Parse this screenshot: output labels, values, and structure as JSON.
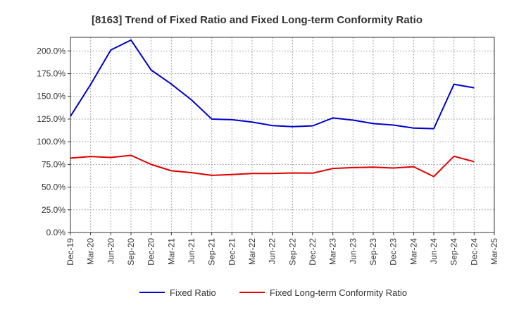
{
  "chart_data": {
    "type": "line",
    "title": "[8163]  Trend of Fixed Ratio and Fixed Long-term Conformity Ratio",
    "xlabel": "",
    "ylabel": "",
    "x": [
      "Dec-19",
      "Mar-20",
      "Jun-20",
      "Sep-20",
      "Dec-20",
      "Mar-21",
      "Jun-21",
      "Sep-21",
      "Dec-21",
      "Mar-22",
      "Jun-22",
      "Sep-22",
      "Dec-22",
      "Mar-23",
      "Jun-23",
      "Sep-23",
      "Dec-23",
      "Mar-24",
      "Jun-24",
      "Sep-24",
      "Dec-24",
      "Mar-25"
    ],
    "y_ticks": [
      "0.0%",
      "25.0%",
      "50.0%",
      "75.0%",
      "100.0%",
      "125.0%",
      "150.0%",
      "175.0%",
      "200.0%"
    ],
    "ylim": [
      0,
      215
    ],
    "grid": true,
    "legend_position": "bottom",
    "series": [
      {
        "name": "Fixed Ratio",
        "color": "#0000cc",
        "values": [
          128.0,
          163.0,
          201.0,
          212.0,
          179.0,
          163.5,
          146.0,
          125.0,
          124.3,
          121.7,
          117.8,
          116.6,
          117.5,
          126.2,
          123.8,
          120.0,
          118.4,
          115.1,
          114.4,
          163.3,
          159.4,
          null
        ]
      },
      {
        "name": "Fixed Long-term Conformity Ratio",
        "color": "#dd0000",
        "values": [
          82.0,
          83.7,
          82.7,
          85.0,
          75.0,
          68.0,
          66.0,
          63.0,
          63.8,
          65.0,
          65.0,
          65.6,
          65.4,
          70.5,
          71.5,
          72.0,
          71.0,
          72.5,
          61.6,
          84.0,
          78.0,
          null
        ]
      }
    ]
  }
}
